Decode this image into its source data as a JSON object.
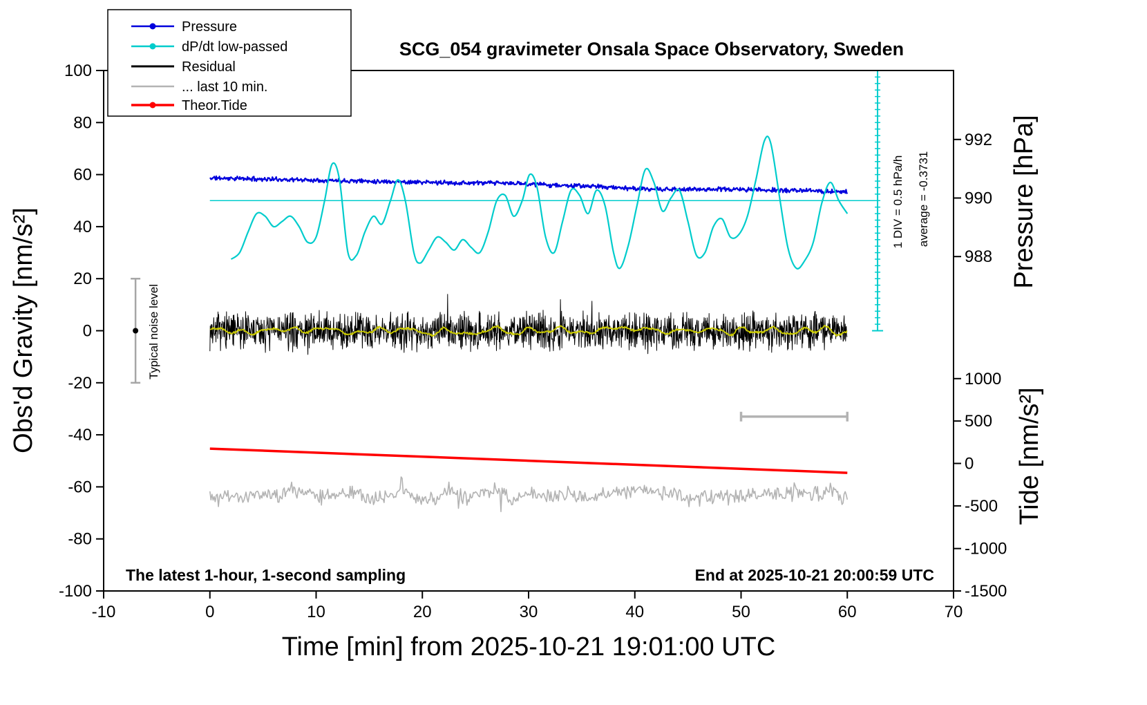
{
  "title": "SCG_054 gravimeter Onsala Space Observatory, Sweden",
  "footer": {
    "left": "The latest 1-hour, 1-second sampling",
    "right": "End at 2025-10-21 20:00:59 UTC"
  },
  "annotations": {
    "noise_level": "Typical noise level",
    "div_scale": "1 DIV = 0.5 hPa/h",
    "average": "average = -0.3731"
  },
  "legend": {
    "items": [
      {
        "label": "Pressure",
        "color": "#0000dd"
      },
      {
        "label": "dP/dt low-passed",
        "color": "#00cccc"
      },
      {
        "label": "Residual",
        "color": "#000000"
      },
      {
        "label": "... last 10 min.",
        "color": "#b3b3b3"
      },
      {
        "label": "Theor.Tide",
        "color": "#ff0000"
      }
    ]
  },
  "axes": {
    "x": {
      "label": "Time [min] from 2025-10-21 19:01:00 UTC",
      "min": -10,
      "max": 70,
      "ticks": [
        -10,
        0,
        10,
        20,
        30,
        40,
        50,
        60,
        70
      ]
    },
    "y_left": {
      "label": "Obs'd Gravity [nm/s²]",
      "min": -100,
      "max": 100,
      "ticks": [
        -100,
        -80,
        -60,
        -40,
        -20,
        0,
        20,
        40,
        60,
        80,
        100
      ]
    },
    "y_right_pressure": {
      "label": "Pressure [hPa]",
      "ticks": [
        {
          "label": "992",
          "at": 73.5
        },
        {
          "label": "990",
          "at": 51
        },
        {
          "label": "988",
          "at": 28.5
        }
      ]
    },
    "y_right_tide": {
      "label": "Tide [nm/s²]",
      "ticks": [
        {
          "label": "1000",
          "at": -18.4
        },
        {
          "label": "500",
          "at": -34.7
        },
        {
          "label": "0",
          "at": -51.0
        },
        {
          "label": "-500",
          "at": -67.3
        },
        {
          "label": "-1000",
          "at": -83.7
        },
        {
          "label": "-1500",
          "at": -100
        }
      ]
    }
  },
  "chart_data": {
    "type": "line",
    "title": "SCG_054 gravimeter Onsala Space Observatory, Sweden",
    "xlabel": "Time [min] from 2025-10-21 19:01:00 UTC",
    "ylabel": "Obs'd Gravity [nm/s²]",
    "xlim": [
      -10,
      70
    ],
    "ylim": [
      -100,
      100
    ],
    "pressure_axis": {
      "label": "Pressure [hPa]",
      "ticks": [
        988,
        990,
        992
      ]
    },
    "tide_axis": {
      "label": "Tide [nm/s²]",
      "ticks": [
        -1500,
        -1000,
        -500,
        0,
        500,
        1000
      ]
    },
    "series": [
      {
        "name": "Pressure",
        "color": "#0000dd",
        "style": "noisy_trend",
        "stroke_width": 2.2,
        "x_start": 0,
        "x_end": 60,
        "step": 0.06,
        "y_start": 58.7,
        "y_end": 53.3,
        "noise": 1.0,
        "wander": {
          "interval": 7,
          "amplitude": 0.7
        },
        "seed": 11
      },
      {
        "name": "dP/dt low-passed",
        "color": "#00cccc",
        "style": "smooth_points",
        "stroke_width": 2.2,
        "points": [
          [
            2,
            27.5
          ],
          [
            2.8,
            30
          ],
          [
            3.6,
            38
          ],
          [
            4.4,
            45
          ],
          [
            5.2,
            44
          ],
          [
            6,
            40
          ],
          [
            6.8,
            42
          ],
          [
            7.6,
            44
          ],
          [
            8.4,
            40
          ],
          [
            9.2,
            34
          ],
          [
            10,
            36
          ],
          [
            10.8,
            50
          ],
          [
            11.5,
            64
          ],
          [
            12.2,
            58
          ],
          [
            13,
            30
          ],
          [
            13.8,
            29
          ],
          [
            14.6,
            38
          ],
          [
            15.4,
            44
          ],
          [
            16.2,
            41
          ],
          [
            17,
            50
          ],
          [
            17.7,
            58
          ],
          [
            18.4,
            50
          ],
          [
            19.2,
            30
          ],
          [
            19.8,
            26
          ],
          [
            20.6,
            31
          ],
          [
            21.4,
            36
          ],
          [
            22.2,
            34
          ],
          [
            23,
            31
          ],
          [
            23.8,
            35
          ],
          [
            24.6,
            32
          ],
          [
            25.4,
            30
          ],
          [
            26.2,
            38
          ],
          [
            27,
            50
          ],
          [
            27.8,
            52
          ],
          [
            28.6,
            44
          ],
          [
            29.4,
            50
          ],
          [
            30.1,
            60
          ],
          [
            30.8,
            55
          ],
          [
            31.6,
            36
          ],
          [
            32.4,
            30
          ],
          [
            33.2,
            42
          ],
          [
            34,
            54
          ],
          [
            34.8,
            52
          ],
          [
            35.6,
            45
          ],
          [
            36.4,
            54
          ],
          [
            37.2,
            48
          ],
          [
            38,
            30
          ],
          [
            38.6,
            24
          ],
          [
            39.4,
            33
          ],
          [
            40.2,
            48
          ],
          [
            41,
            62
          ],
          [
            41.8,
            57
          ],
          [
            42.6,
            46
          ],
          [
            43.4,
            51
          ],
          [
            44.2,
            54
          ],
          [
            45,
            42
          ],
          [
            45.8,
            29
          ],
          [
            46.6,
            30
          ],
          [
            47.4,
            40
          ],
          [
            48.2,
            43
          ],
          [
            49,
            36
          ],
          [
            49.8,
            37
          ],
          [
            50.6,
            44
          ],
          [
            51.4,
            58
          ],
          [
            52.2,
            73
          ],
          [
            52.8,
            72
          ],
          [
            53.6,
            52
          ],
          [
            54.4,
            32
          ],
          [
            55.2,
            24
          ],
          [
            56,
            27
          ],
          [
            56.8,
            34
          ],
          [
            57.6,
            49
          ],
          [
            58.4,
            57
          ],
          [
            59.2,
            50
          ],
          [
            60,
            45
          ]
        ]
      },
      {
        "name": "Residual",
        "color": "#000000",
        "style": "noisy_band",
        "stroke_width": 1,
        "x_start": 0,
        "x_end": 60,
        "step": 0.0333,
        "baseline": 0,
        "noise": 8.5,
        "spike_chance": 0.012,
        "spike_factor": 2.0,
        "seed": 7
      },
      {
        "name": "Residual low-passed",
        "color": "#cccc00",
        "style": "noisy_band",
        "stroke_width": 1.8,
        "x_start": 0,
        "x_end": 60,
        "step": 0.06,
        "baseline": 0,
        "noise": 0.5,
        "wander": {
          "interval": 1.0,
          "amplitude": 1.7
        },
        "seed": 5
      },
      {
        "name": "... last 10 min.",
        "color": "#b3b3b3",
        "style": "noisy_band",
        "stroke_width": 1.6,
        "x_start": 0,
        "x_end": 60,
        "step": 0.1,
        "baseline": -63,
        "noise": 3.6,
        "spike_chance": 0.01,
        "spike_factor": 2.4,
        "wander": {
          "interval": 1.5,
          "amplitude": 2.2
        },
        "seed": 21
      },
      {
        "name": "Theor.Tide",
        "color": "#ff0000",
        "style": "smooth_points",
        "stroke_width": 3.5,
        "points": [
          [
            0,
            -45.3
          ],
          [
            60,
            -54.6
          ]
        ]
      }
    ],
    "reference_lines": [
      {
        "name": "dpdt-zero-line",
        "color": "#00cccc",
        "stroke_width": 1.6,
        "y": 50,
        "x1": 0,
        "x2": 62.85
      }
    ],
    "markers": {
      "noise_bar": {
        "x": -7,
        "y_center": 0,
        "half_height": 20,
        "color": "#a6a6a6",
        "dot_color": "#000000"
      },
      "duration_bar": {
        "x1": 50,
        "x2": 60,
        "y": -33,
        "color": "#b3b3b3"
      },
      "div_ruler": {
        "x": 62.85,
        "y_bottom": 0,
        "y_top": 100,
        "tick_step": 2.5,
        "color": "#00cccc"
      }
    }
  }
}
